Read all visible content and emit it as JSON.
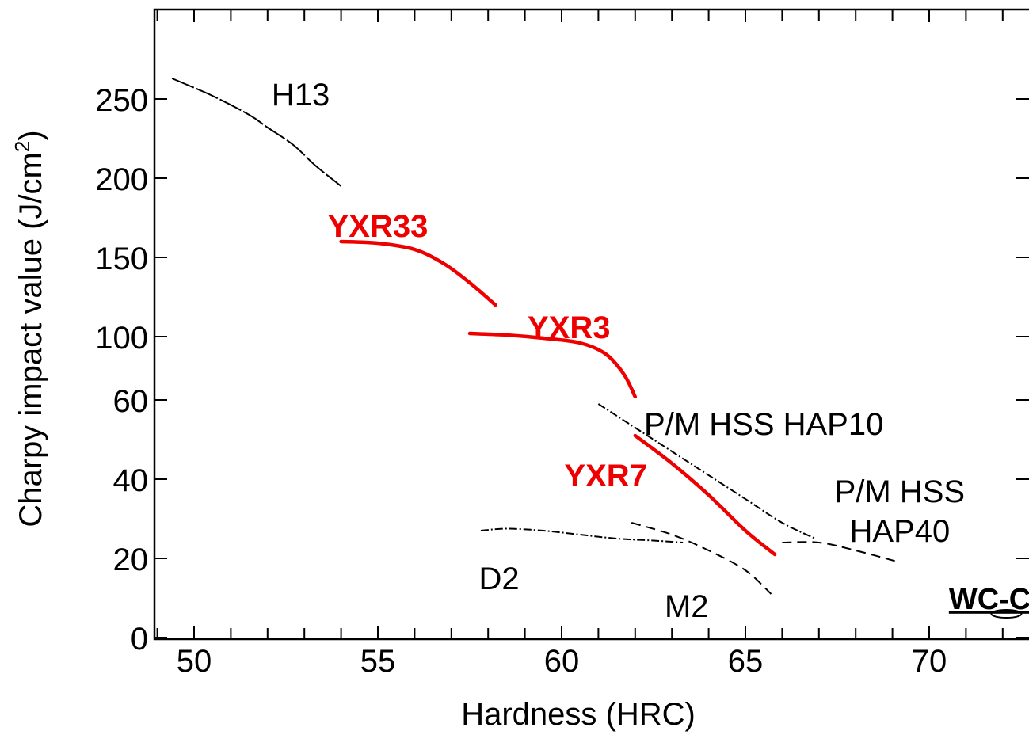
{
  "chart_data": {
    "type": "line",
    "xlabel": "Hardness (HRC)",
    "ylabel": "Charpy impact value (J/cm²)",
    "xlim": [
      49,
      73
    ],
    "x_ticks": [
      50,
      55,
      60,
      65,
      70
    ],
    "y_ticks": [
      {
        "value": 0,
        "label": "0"
      },
      {
        "value": 20,
        "label": "20"
      },
      {
        "value": 40,
        "label": "40"
      },
      {
        "value": 60,
        "label": "60"
      },
      {
        "value": 100,
        "label": "100"
      },
      {
        "value": 150,
        "label": "150"
      },
      {
        "value": 200,
        "label": "200"
      },
      {
        "value": 250,
        "label": "250"
      }
    ],
    "y_scale_note": "broken",
    "grid": false,
    "series": [
      {
        "name": "H13",
        "color": "#000000",
        "style": "dash-long",
        "weight": "thin",
        "x": [
          49.4,
          50.5,
          51.5,
          52.0,
          52.7,
          53.3,
          54.0
        ],
        "y": [
          263,
          252,
          240,
          232,
          221,
          208,
          195
        ]
      },
      {
        "name": "YXR33",
        "color": "#ee0000",
        "style": "solid",
        "weight": "thick",
        "x": [
          54.0,
          55.0,
          56.0,
          56.8,
          57.5,
          58.2
        ],
        "y": [
          160,
          159,
          155,
          146,
          134,
          120
        ]
      },
      {
        "name": "YXR3",
        "color": "#ee0000",
        "style": "solid",
        "weight": "thick",
        "x": [
          57.5,
          58.5,
          59.5,
          60.5,
          61.2,
          61.7,
          62.0
        ],
        "y": [
          102,
          101,
          99,
          96,
          89,
          76,
          62
        ]
      },
      {
        "name": "YXR7",
        "color": "#ee0000",
        "style": "solid",
        "weight": "thick",
        "x": [
          62.0,
          63.0,
          64.0,
          65.0,
          65.8
        ],
        "y": [
          51,
          44,
          36,
          27,
          21
        ]
      },
      {
        "name": "P/M HSS HAP10",
        "color": "#000000",
        "style": "dash-dot",
        "weight": "thin",
        "x": [
          61.0,
          62.0,
          63.0,
          64.0,
          65.0,
          66.0,
          66.9
        ],
        "y": [
          59,
          53,
          47,
          41,
          35,
          29,
          25
        ]
      },
      {
        "name": "P/M HSS HAP40",
        "color": "#000000",
        "style": "dash",
        "weight": "thin",
        "x": [
          66.0,
          67.0,
          68.0,
          69.2
        ],
        "y": [
          24,
          24,
          22,
          19
        ]
      },
      {
        "name": "M2",
        "color": "#000000",
        "style": "dash",
        "weight": "thin",
        "x": [
          61.9,
          63.0,
          64.0,
          65.0,
          65.7
        ],
        "y": [
          29,
          26,
          22,
          17,
          11
        ]
      },
      {
        "name": "D2",
        "color": "#000000",
        "style": "dash-dot",
        "weight": "thin",
        "x": [
          57.8,
          58.5,
          59.5,
          60.5,
          61.5,
          62.5,
          63.3
        ],
        "y": [
          27,
          27.5,
          27,
          26,
          25,
          24.5,
          24
        ]
      },
      {
        "name": "WC-Co",
        "color": "#000000",
        "style": "ellipse",
        "weight": "thin",
        "x": [
          72.1
        ],
        "y": [
          6
        ]
      }
    ],
    "annotations": [
      {
        "text": "H13",
        "x": 52.9,
        "y": 253,
        "color": "#000000",
        "bold": false
      },
      {
        "text": "YXR33",
        "x": 55.0,
        "y": 170,
        "color": "#ee0000",
        "bold": true
      },
      {
        "text": "YXR3",
        "x": 60.2,
        "y": 106,
        "color": "#ee0000",
        "bold": true
      },
      {
        "text": "P/M HSS HAP10",
        "x": 65.5,
        "y": 54,
        "color": "#000000",
        "bold": false
      },
      {
        "text": "YXR7",
        "x": 61.2,
        "y": 41,
        "color": "#ee0000",
        "bold": true
      },
      {
        "text": "P/M HSS",
        "x": 69.2,
        "y": 37,
        "color": "#000000",
        "bold": false
      },
      {
        "text": "HAP40",
        "x": 69.2,
        "y": 27,
        "color": "#000000",
        "bold": false
      },
      {
        "text": "D2",
        "x": 58.3,
        "y": 15,
        "color": "#000000",
        "bold": false
      },
      {
        "text": "M2",
        "x": 63.4,
        "y": 8,
        "color": "#000000",
        "bold": false
      },
      {
        "text": "WC-Co",
        "x": 71.9,
        "y": 10,
        "color": "#000000",
        "bold": true
      }
    ]
  }
}
